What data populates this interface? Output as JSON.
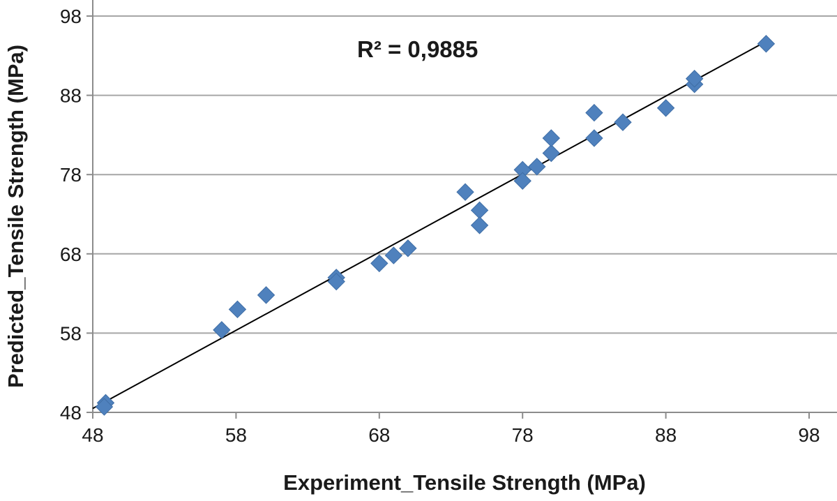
{
  "chart_data": {
    "type": "scatter",
    "xlabel": "Experiment_Tensile Strength (MPa)",
    "ylabel": "Predicted_Tensile Strength (MPa)",
    "xlim": [
      48,
      98
    ],
    "ylim": [
      48,
      98
    ],
    "x_ticks": [
      48,
      58,
      68,
      78,
      88,
      98
    ],
    "y_ticks": [
      48,
      58,
      68,
      78,
      88,
      98
    ],
    "grid": {
      "horizontal": true,
      "vertical": false
    },
    "annotation": "R² = 0,9885",
    "marker": "diamond",
    "colors": {
      "marker": "#4f81bd",
      "trendline": "#000000",
      "grid": "#a6a6a6",
      "axis": "#8c8c8c"
    },
    "series": [
      {
        "x": [
          48.9,
          48.8,
          57.0,
          58.1,
          60.1,
          65.0,
          65.0,
          68.0,
          69.0,
          70.0,
          74.0,
          75.0,
          75.0,
          78.0,
          78.0,
          79.0,
          80.0,
          80.0,
          83.0,
          83.0,
          85.0,
          88.0,
          90.0,
          90.0,
          95.0
        ],
        "y": [
          49.2,
          48.7,
          58.4,
          61.0,
          62.8,
          65.0,
          64.5,
          66.8,
          67.8,
          68.7,
          75.8,
          73.5,
          71.6,
          78.6,
          77.2,
          79.0,
          80.7,
          82.6,
          85.8,
          82.6,
          84.6,
          86.4,
          89.4,
          90.1,
          94.5
        ]
      }
    ],
    "trendline": {
      "type": "linear",
      "x": [
        48,
        95
      ],
      "y": [
        48.5,
        94.8
      ]
    }
  }
}
